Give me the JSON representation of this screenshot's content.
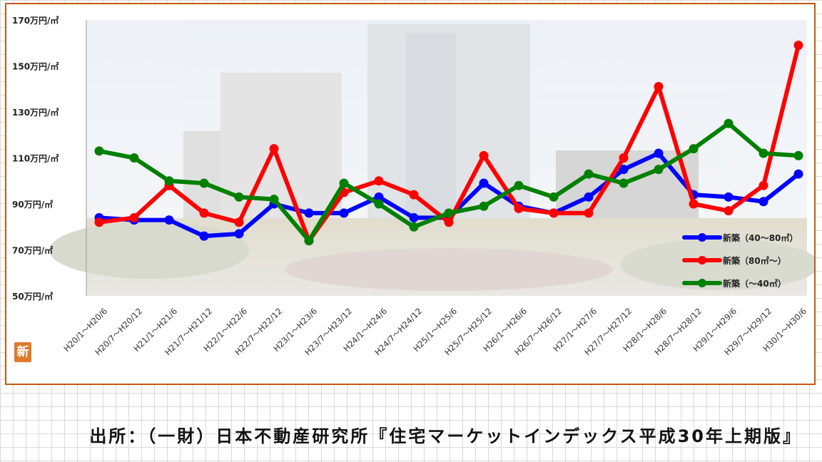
{
  "chart_data": {
    "type": "line",
    "title": "",
    "xlabel": "",
    "ylabel": "",
    "y_unit_suffix": "万円/㎡",
    "ylim": [
      50,
      170
    ],
    "yticks": [
      50,
      70,
      90,
      110,
      130,
      150,
      170
    ],
    "grid": false,
    "legend_position": "bottom-right",
    "categories": [
      "H20/1～H20/6",
      "H20/7～H20/12",
      "H21/1～H21/6",
      "H21/7～H21/12",
      "H22/1～H22/6",
      "H22/7～H22/12",
      "H23/1～H23/6",
      "H23/7～H23/12",
      "H24/1～H24/6",
      "H24/7～H24/12",
      "H25/1～H25/6",
      "H25/7～H25/12",
      "H26/1～H26/6",
      "H26/7～H26/12",
      "H27/1～H27/6",
      "H27/7～H27/12",
      "H28/1～H28/6",
      "H28/7～H28/12",
      "H29/1～H29/6",
      "H29/7～H29/12",
      "H30/1～H30/6"
    ],
    "series": [
      {
        "name": "新築（40～80㎡）",
        "color": "#0000ff",
        "values": [
          84,
          83,
          83,
          76,
          77,
          90,
          86,
          86,
          93,
          84,
          84,
          99,
          89,
          86,
          93,
          105,
          112,
          94,
          93,
          91,
          103
        ]
      },
      {
        "name": "新築（80㎡～）",
        "color": "#ff0000",
        "values": [
          82,
          84,
          98,
          86,
          82,
          114,
          74,
          95,
          100,
          94,
          82,
          111,
          88,
          86,
          86,
          110,
          141,
          90,
          87,
          98,
          159
        ]
      },
      {
        "name": "新築（～40㎡）",
        "color": "#008000",
        "values": [
          113,
          110,
          100,
          99,
          93,
          92,
          74,
          99,
          90,
          80,
          86,
          89,
          98,
          93,
          103,
          99,
          105,
          114,
          125,
          112,
          111
        ]
      }
    ]
  },
  "badge_text": "新",
  "source_note": "出所：（一財）日本不動産研究所『住宅マーケットインデックス平成30年上期版』"
}
